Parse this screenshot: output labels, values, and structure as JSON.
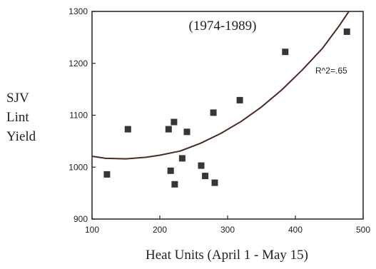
{
  "chart_data": {
    "type": "scatter",
    "annotation_period": "(1974-1989)",
    "annotation_r2": "R^2=.65",
    "ylabel_lines": [
      "SJV",
      "Lint",
      "Yield"
    ],
    "xlabel": "Heat Units (April 1 - May 15)",
    "xlim": [
      100,
      500
    ],
    "ylim": [
      900,
      1300
    ],
    "x_ticks": [
      100,
      200,
      300,
      400,
      500
    ],
    "y_ticks": [
      900,
      1000,
      1100,
      1200,
      1300
    ],
    "marker": "square",
    "grid": false,
    "colors": {
      "axis": "#222222",
      "point": "#3a3531",
      "curve": "#4a2a22"
    },
    "points": [
      {
        "x": 122,
        "y": 986
      },
      {
        "x": 153,
        "y": 1073
      },
      {
        "x": 213,
        "y": 1073
      },
      {
        "x": 216,
        "y": 993
      },
      {
        "x": 221,
        "y": 1087
      },
      {
        "x": 222,
        "y": 967
      },
      {
        "x": 233,
        "y": 1017
      },
      {
        "x": 240,
        "y": 1068
      },
      {
        "x": 261,
        "y": 1003
      },
      {
        "x": 267,
        "y": 983
      },
      {
        "x": 279,
        "y": 1105
      },
      {
        "x": 281,
        "y": 970
      },
      {
        "x": 318,
        "y": 1129
      },
      {
        "x": 385,
        "y": 1222
      },
      {
        "x": 476,
        "y": 1261
      }
    ],
    "fit_curve": [
      {
        "x": 100,
        "y": 1021
      },
      {
        "x": 120,
        "y": 1017
      },
      {
        "x": 150,
        "y": 1016
      },
      {
        "x": 180,
        "y": 1019
      },
      {
        "x": 200,
        "y": 1023
      },
      {
        "x": 230,
        "y": 1031
      },
      {
        "x": 260,
        "y": 1046
      },
      {
        "x": 290,
        "y": 1065
      },
      {
        "x": 320,
        "y": 1088
      },
      {
        "x": 350,
        "y": 1116
      },
      {
        "x": 380,
        "y": 1149
      },
      {
        "x": 410,
        "y": 1187
      },
      {
        "x": 440,
        "y": 1229
      },
      {
        "x": 465,
        "y": 1273
      },
      {
        "x": 480,
        "y": 1302
      }
    ]
  }
}
